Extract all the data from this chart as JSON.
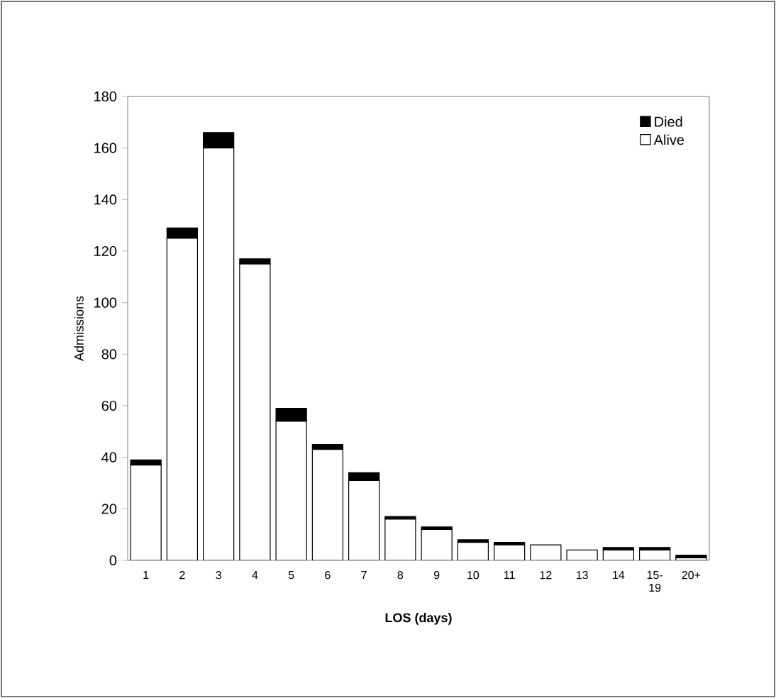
{
  "chart_data": {
    "type": "bar",
    "stacked": true,
    "xlabel": "LOS (days)",
    "ylabel": "Admissions",
    "categories": [
      "1",
      "2",
      "3",
      "4",
      "5",
      "6",
      "7",
      "8",
      "9",
      "10",
      "11",
      "12",
      "13",
      "14",
      "15-19",
      "20+"
    ],
    "series": [
      {
        "name": "Alive",
        "color": "#ffffff",
        "values": [
          37,
          125,
          160,
          115,
          54,
          43,
          31,
          16,
          12,
          7,
          6,
          6,
          4,
          4,
          4,
          1
        ]
      },
      {
        "name": "Died",
        "color": "#000000",
        "values": [
          2,
          4,
          6,
          2,
          5,
          2,
          3,
          1,
          1,
          1,
          1,
          0,
          0,
          1,
          1,
          1
        ]
      }
    ],
    "ylim": [
      0,
      180
    ],
    "yticks": [
      0,
      20,
      40,
      60,
      80,
      100,
      120,
      140,
      160,
      180
    ],
    "legend": "top right",
    "grid": false
  }
}
